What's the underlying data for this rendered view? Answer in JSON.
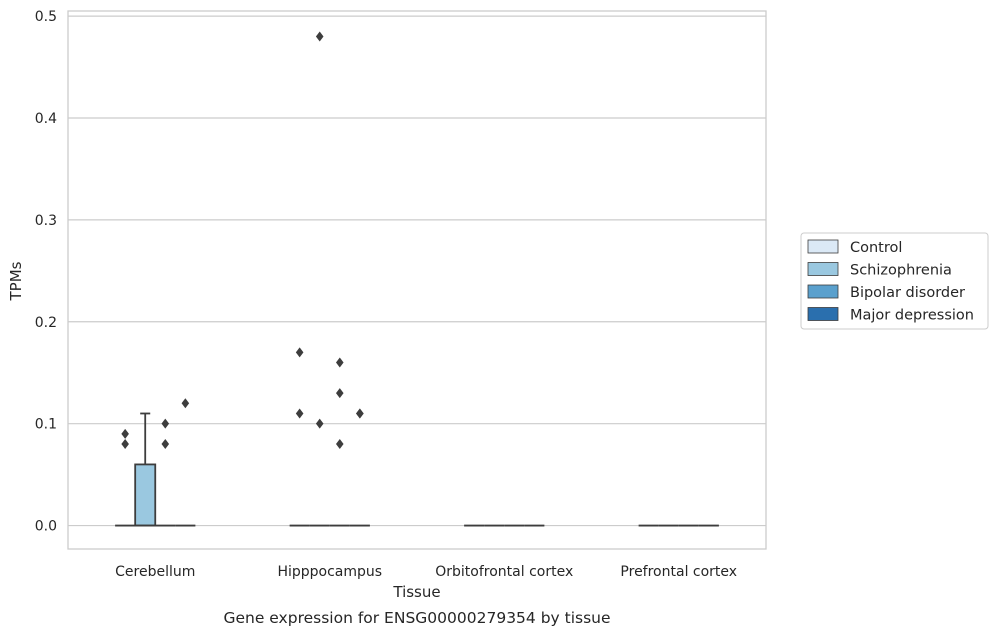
{
  "chart_data": {
    "type": "box",
    "xlabel": "Tissue",
    "ylabel": "TPMs",
    "caption": "Gene expression for ENSG00000279354 by tissue",
    "ylim": [
      -0.023,
      0.505
    ],
    "yticks": [
      {
        "value": 0.0,
        "label": "0.0"
      },
      {
        "value": 0.1,
        "label": "0.1"
      },
      {
        "value": 0.2,
        "label": "0.2"
      },
      {
        "value": 0.3,
        "label": "0.3"
      },
      {
        "value": 0.4,
        "label": "0.4"
      },
      {
        "value": 0.5,
        "label": "0.5"
      }
    ],
    "grid": "horizontal",
    "legend_position": "right",
    "categories": [
      "Cerebellum",
      "Hipppocampus",
      "Orbitofrontal cortex",
      "Prefrontal cortex"
    ],
    "series": [
      {
        "name": "Control",
        "color": "#dbe9f6",
        "boxes": [
          {
            "q1": 0,
            "median": 0,
            "q3": 0,
            "whisker_low": 0,
            "whisker_high": 0,
            "outliers": [
              0.08,
              0.09
            ]
          },
          {
            "q1": 0,
            "median": 0,
            "q3": 0,
            "whisker_low": 0,
            "whisker_high": 0,
            "outliers": [
              0.11,
              0.17
            ]
          },
          {
            "q1": 0,
            "median": 0,
            "q3": 0,
            "whisker_low": 0,
            "whisker_high": 0,
            "outliers": []
          },
          {
            "q1": 0,
            "median": 0,
            "q3": 0,
            "whisker_low": 0,
            "whisker_high": 0,
            "outliers": []
          }
        ]
      },
      {
        "name": "Schizophrenia",
        "color": "#9ac8e0",
        "boxes": [
          {
            "q1": 0,
            "median": 0,
            "q3": 0.06,
            "whisker_low": 0,
            "whisker_high": 0.11,
            "outliers": []
          },
          {
            "q1": 0,
            "median": 0,
            "q3": 0,
            "whisker_low": 0,
            "whisker_high": 0,
            "outliers": [
              0.1,
              0.48
            ]
          },
          {
            "q1": 0,
            "median": 0,
            "q3": 0,
            "whisker_low": 0,
            "whisker_high": 0,
            "outliers": []
          },
          {
            "q1": 0,
            "median": 0,
            "q3": 0,
            "whisker_low": 0,
            "whisker_high": 0,
            "outliers": []
          }
        ]
      },
      {
        "name": "Bipolar disorder",
        "color": "#5aa0cd",
        "boxes": [
          {
            "q1": 0,
            "median": 0,
            "q3": 0,
            "whisker_low": 0,
            "whisker_high": 0,
            "outliers": [
              0.08,
              0.1
            ]
          },
          {
            "q1": 0,
            "median": 0,
            "q3": 0,
            "whisker_low": 0,
            "whisker_high": 0,
            "outliers": [
              0.08,
              0.13,
              0.16
            ]
          },
          {
            "q1": 0,
            "median": 0,
            "q3": 0,
            "whisker_low": 0,
            "whisker_high": 0,
            "outliers": []
          },
          {
            "q1": 0,
            "median": 0,
            "q3": 0,
            "whisker_low": 0,
            "whisker_high": 0,
            "outliers": []
          }
        ]
      },
      {
        "name": "Major depression",
        "color": "#2a6fae",
        "boxes": [
          {
            "q1": 0,
            "median": 0,
            "q3": 0,
            "whisker_low": 0,
            "whisker_high": 0,
            "outliers": [
              0.12
            ]
          },
          {
            "q1": 0,
            "median": 0,
            "q3": 0,
            "whisker_low": 0,
            "whisker_high": 0,
            "outliers": [
              0.11,
              0.11
            ]
          },
          {
            "q1": 0,
            "median": 0,
            "q3": 0,
            "whisker_low": 0,
            "whisker_high": 0,
            "outliers": []
          },
          {
            "q1": 0,
            "median": 0,
            "q3": 0,
            "whisker_low": 0,
            "whisker_high": 0,
            "outliers": []
          }
        ]
      }
    ],
    "colors": {
      "grid": "#cccccc",
      "frame": "#cccccc",
      "box_edge": "#3d3d3d",
      "outlier": "#3d3d3d"
    }
  }
}
